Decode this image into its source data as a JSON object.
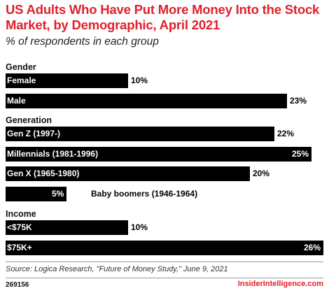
{
  "chart_data": {
    "type": "bar",
    "orientation": "horizontal",
    "title": "US Adults Who Have Put More Money Into the Stock Market, by Demographic, April 2021",
    "subtitle": "% of respondents in each group",
    "groups": [
      {
        "name": "Gender",
        "items": [
          {
            "label": "Female",
            "value": 10,
            "display": "10%"
          },
          {
            "label": "Male",
            "value": 23,
            "display": "23%"
          }
        ]
      },
      {
        "name": "Generation",
        "items": [
          {
            "label": "Gen Z (1997-)",
            "value": 22,
            "display": "22%"
          },
          {
            "label": "Millennials (1981-1996)",
            "value": 25,
            "display": "25%"
          },
          {
            "label": "Gen X (1965-1980)",
            "value": 20,
            "display": "20%"
          },
          {
            "label": "Baby boomers (1946-1964)",
            "value": 5,
            "display": "5%"
          }
        ]
      },
      {
        "name": "Income",
        "items": [
          {
            "label": "<$75K",
            "value": 10,
            "display": "10%"
          },
          {
            "label": "$75K+",
            "value": 26,
            "display": "26%"
          }
        ]
      }
    ],
    "xlim": [
      0,
      26
    ],
    "bar_color": "#000000",
    "title_color": "#e0202b"
  },
  "footer": {
    "source": "Source: Logica Research, \"Future of Money Study,\" June 9, 2021",
    "chart_id": "269156",
    "brand": "InsiderIntelligence.com"
  }
}
